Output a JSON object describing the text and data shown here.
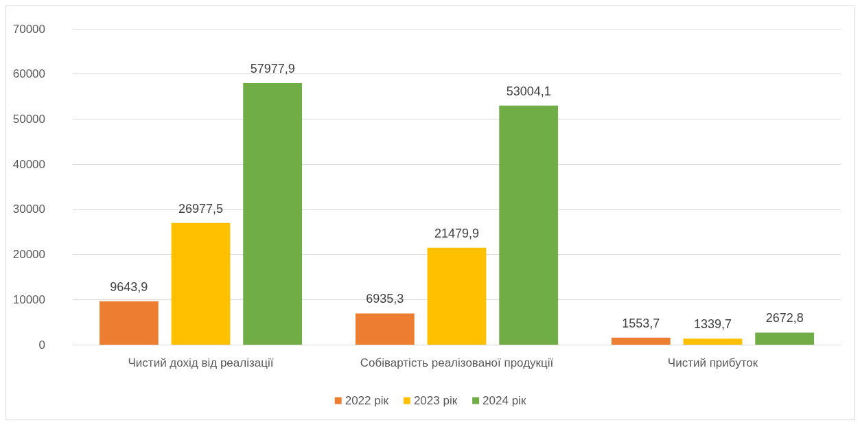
{
  "chart_data": {
    "type": "bar",
    "categories": [
      "Чистий дохід від реалізації",
      "Собівартість реалізованої продукції",
      "Чистий прибуток"
    ],
    "series": [
      {
        "name": "2022 рік",
        "color": "#ed7d31",
        "values": [
          9643.9,
          6935.3,
          1553.7
        ],
        "value_labels": [
          "9643,9",
          "6935,3",
          "1553,7"
        ]
      },
      {
        "name": "2023 рік",
        "color": "#ffc000",
        "values": [
          26977.5,
          21479.9,
          1339.7
        ],
        "value_labels": [
          "26977,5",
          "21479,9",
          "1339,7"
        ]
      },
      {
        "name": "2024 рік",
        "color": "#70ad47",
        "values": [
          57977.9,
          53004.1,
          2672.8
        ],
        "value_labels": [
          "57977,9",
          "53004,1",
          "2672,8"
        ]
      }
    ],
    "ylim": [
      0,
      70000
    ],
    "yticks": [
      0,
      10000,
      20000,
      30000,
      40000,
      50000,
      60000,
      70000
    ],
    "grid": "y",
    "legend": "bottom"
  }
}
